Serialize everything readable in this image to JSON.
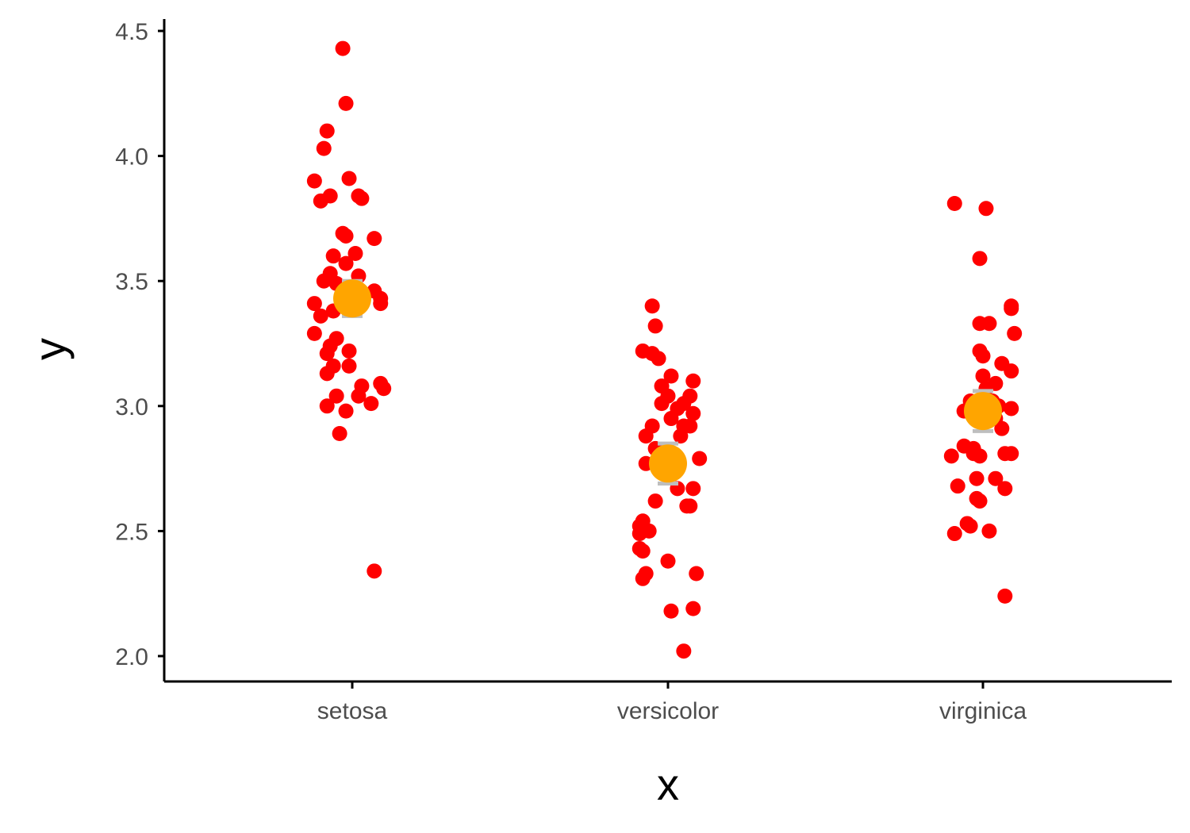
{
  "chart_data": {
    "type": "scatter",
    "title": "",
    "xlabel": "x",
    "ylabel": "y",
    "categories": [
      "setosa",
      "versicolor",
      "virginica"
    ],
    "ylim": [
      1.9,
      4.55
    ],
    "yticks": [
      2.0,
      2.5,
      3.0,
      3.5,
      4.0,
      4.5
    ],
    "ytick_labels": [
      "2.0",
      "2.5",
      "3.0",
      "3.5",
      "4.0",
      "4.5"
    ],
    "grid": false,
    "colors": {
      "points": "#ff0000",
      "mean": "#ffa500",
      "error_bar": "#bebebe",
      "axis": "#000000"
    },
    "series": [
      {
        "category": "setosa",
        "mean": 3.43,
        "error_low": 3.36,
        "error_high": 3.5,
        "points": [
          {
            "dx": -0.03,
            "y": 4.43
          },
          {
            "dx": -0.02,
            "y": 4.21
          },
          {
            "dx": -0.08,
            "y": 4.1
          },
          {
            "dx": -0.09,
            "y": 4.03
          },
          {
            "dx": -0.01,
            "y": 3.91
          },
          {
            "dx": -0.12,
            "y": 3.9
          },
          {
            "dx": -0.07,
            "y": 3.84
          },
          {
            "dx": -0.1,
            "y": 3.82
          },
          {
            "dx": 0.02,
            "y": 3.84
          },
          {
            "dx": 0.03,
            "y": 3.83
          },
          {
            "dx": -0.03,
            "y": 3.69
          },
          {
            "dx": -0.02,
            "y": 3.68
          },
          {
            "dx": 0.07,
            "y": 3.67
          },
          {
            "dx": -0.06,
            "y": 3.6
          },
          {
            "dx": 0.01,
            "y": 3.61
          },
          {
            "dx": -0.02,
            "y": 3.57
          },
          {
            "dx": -0.07,
            "y": 3.53
          },
          {
            "dx": 0.02,
            "y": 3.52
          },
          {
            "dx": -0.09,
            "y": 3.5
          },
          {
            "dx": -0.05,
            "y": 3.49
          },
          {
            "dx": 0.07,
            "y": 3.46
          },
          {
            "dx": 0.09,
            "y": 3.43
          },
          {
            "dx": -0.12,
            "y": 3.41
          },
          {
            "dx": 0.09,
            "y": 3.41
          },
          {
            "dx": -0.06,
            "y": 3.38
          },
          {
            "dx": -0.1,
            "y": 3.36
          },
          {
            "dx": -0.12,
            "y": 3.29
          },
          {
            "dx": -0.05,
            "y": 3.27
          },
          {
            "dx": -0.07,
            "y": 3.24
          },
          {
            "dx": -0.01,
            "y": 3.22
          },
          {
            "dx": -0.08,
            "y": 3.21
          },
          {
            "dx": -0.06,
            "y": 3.16
          },
          {
            "dx": -0.01,
            "y": 3.16
          },
          {
            "dx": -0.08,
            "y": 3.13
          },
          {
            "dx": 0.09,
            "y": 3.09
          },
          {
            "dx": 0.03,
            "y": 3.08
          },
          {
            "dx": 0.1,
            "y": 3.07
          },
          {
            "dx": 0.02,
            "y": 3.04
          },
          {
            "dx": -0.05,
            "y": 3.04
          },
          {
            "dx": 0.06,
            "y": 3.01
          },
          {
            "dx": -0.08,
            "y": 3.0
          },
          {
            "dx": -0.02,
            "y": 2.98
          },
          {
            "dx": -0.04,
            "y": 2.89
          },
          {
            "dx": 0.07,
            "y": 2.34
          }
        ]
      },
      {
        "category": "versicolor",
        "mean": 2.77,
        "error_low": 2.69,
        "error_high": 2.85,
        "points": [
          {
            "dx": -0.05,
            "y": 3.4
          },
          {
            "dx": -0.04,
            "y": 3.32
          },
          {
            "dx": -0.08,
            "y": 3.22
          },
          {
            "dx": -0.05,
            "y": 3.21
          },
          {
            "dx": -0.03,
            "y": 3.19
          },
          {
            "dx": 0.01,
            "y": 3.12
          },
          {
            "dx": 0.08,
            "y": 3.1
          },
          {
            "dx": -0.02,
            "y": 3.08
          },
          {
            "dx": 0.07,
            "y": 3.04
          },
          {
            "dx": 0.0,
            "y": 3.04
          },
          {
            "dx": 0.05,
            "y": 3.01
          },
          {
            "dx": -0.02,
            "y": 3.01
          },
          {
            "dx": 0.03,
            "y": 2.99
          },
          {
            "dx": 0.08,
            "y": 2.97
          },
          {
            "dx": 0.01,
            "y": 2.95
          },
          {
            "dx": 0.05,
            "y": 2.92
          },
          {
            "dx": -0.05,
            "y": 2.92
          },
          {
            "dx": 0.07,
            "y": 2.92
          },
          {
            "dx": -0.07,
            "y": 2.88
          },
          {
            "dx": 0.04,
            "y": 2.88
          },
          {
            "dx": -0.04,
            "y": 2.83
          },
          {
            "dx": 0.1,
            "y": 2.79
          },
          {
            "dx": -0.07,
            "y": 2.77
          },
          {
            "dx": 0.08,
            "y": 2.67
          },
          {
            "dx": 0.03,
            "y": 2.67
          },
          {
            "dx": -0.04,
            "y": 2.62
          },
          {
            "dx": 0.07,
            "y": 2.6
          },
          {
            "dx": 0.06,
            "y": 2.6
          },
          {
            "dx": -0.08,
            "y": 2.54
          },
          {
            "dx": -0.09,
            "y": 2.52
          },
          {
            "dx": -0.06,
            "y": 2.5
          },
          {
            "dx": -0.09,
            "y": 2.49
          },
          {
            "dx": -0.09,
            "y": 2.43
          },
          {
            "dx": -0.08,
            "y": 2.42
          },
          {
            "dx": 0.0,
            "y": 2.38
          },
          {
            "dx": -0.07,
            "y": 2.33
          },
          {
            "dx": 0.09,
            "y": 2.33
          },
          {
            "dx": -0.08,
            "y": 2.31
          },
          {
            "dx": 0.08,
            "y": 2.19
          },
          {
            "dx": 0.01,
            "y": 2.18
          },
          {
            "dx": 0.05,
            "y": 2.02
          }
        ]
      },
      {
        "category": "virginica",
        "mean": 2.98,
        "error_low": 2.9,
        "error_high": 3.06,
        "points": [
          {
            "dx": -0.09,
            "y": 3.81
          },
          {
            "dx": 0.01,
            "y": 3.79
          },
          {
            "dx": -0.01,
            "y": 3.59
          },
          {
            "dx": 0.09,
            "y": 3.4
          },
          {
            "dx": 0.09,
            "y": 3.39
          },
          {
            "dx": -0.01,
            "y": 3.33
          },
          {
            "dx": 0.02,
            "y": 3.33
          },
          {
            "dx": 0.1,
            "y": 3.29
          },
          {
            "dx": -0.01,
            "y": 3.22
          },
          {
            "dx": 0.0,
            "y": 3.2
          },
          {
            "dx": 0.06,
            "y": 3.17
          },
          {
            "dx": 0.09,
            "y": 3.14
          },
          {
            "dx": 0.0,
            "y": 3.12
          },
          {
            "dx": 0.04,
            "y": 3.09
          },
          {
            "dx": 0.01,
            "y": 3.07
          },
          {
            "dx": -0.04,
            "y": 3.02
          },
          {
            "dx": 0.03,
            "y": 3.02
          },
          {
            "dx": 0.05,
            "y": 3.0
          },
          {
            "dx": 0.09,
            "y": 2.99
          },
          {
            "dx": -0.06,
            "y": 2.98
          },
          {
            "dx": 0.04,
            "y": 2.95
          },
          {
            "dx": 0.06,
            "y": 2.91
          },
          {
            "dx": -0.06,
            "y": 2.84
          },
          {
            "dx": -0.03,
            "y": 2.83
          },
          {
            "dx": -0.03,
            "y": 2.81
          },
          {
            "dx": 0.07,
            "y": 2.81
          },
          {
            "dx": -0.1,
            "y": 2.8
          },
          {
            "dx": -0.01,
            "y": 2.8
          },
          {
            "dx": 0.09,
            "y": 2.81
          },
          {
            "dx": -0.02,
            "y": 2.71
          },
          {
            "dx": 0.04,
            "y": 2.71
          },
          {
            "dx": -0.08,
            "y": 2.68
          },
          {
            "dx": 0.07,
            "y": 2.67
          },
          {
            "dx": -0.02,
            "y": 2.63
          },
          {
            "dx": -0.01,
            "y": 2.62
          },
          {
            "dx": -0.05,
            "y": 2.53
          },
          {
            "dx": -0.04,
            "y": 2.52
          },
          {
            "dx": 0.02,
            "y": 2.5
          },
          {
            "dx": -0.09,
            "y": 2.49
          },
          {
            "dx": 0.07,
            "y": 2.24
          }
        ]
      }
    ]
  }
}
